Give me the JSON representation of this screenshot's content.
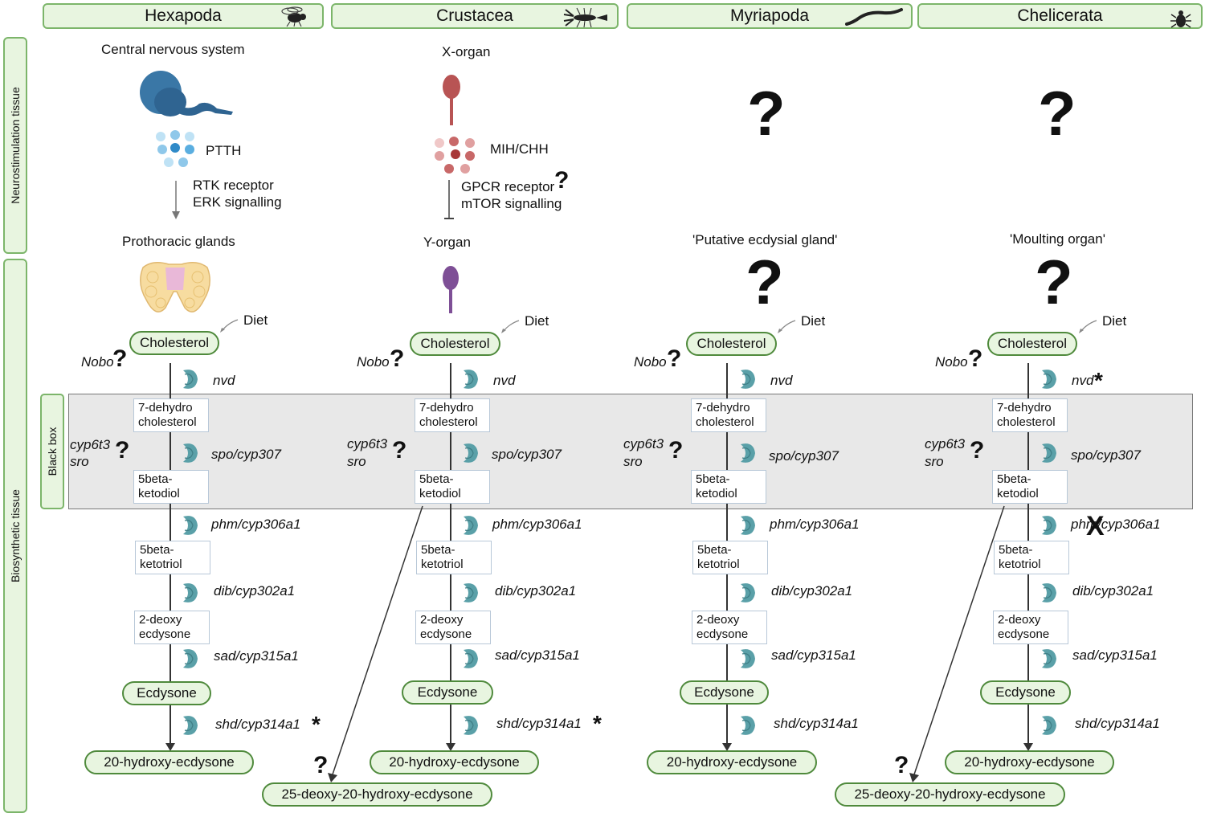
{
  "headers": {
    "hexapoda": "Hexapoda",
    "crustacea": "Crustacea",
    "myriapoda": "Myriapoda",
    "chelicerata": "Chelicerata"
  },
  "side_labels": {
    "neuro": "Neurostimulation tissue",
    "bio": "Biosynthetic tissue",
    "blackbox": "Black box"
  },
  "hexapoda": {
    "neuro_tissue": "Central nervous system",
    "hormone": "PTTH",
    "receptor_line1": "RTK receptor",
    "receptor_line2": "ERK signalling",
    "gland": "Prothoracic glands"
  },
  "crustacea": {
    "neuro_tissue": "X-organ",
    "hormone": "MIH/CHH",
    "receptor_line1": "GPCR receptor",
    "receptor_line2": "mTOR signalling",
    "gland": "Y-organ"
  },
  "myriapoda": {
    "gland": "'Putative ecdysial gland'"
  },
  "chelicerata": {
    "gland": "'Moulting organ'"
  },
  "pathway": {
    "diet": "Diet",
    "cholesterol": "Cholesterol",
    "nobo": "Nobo",
    "nvd": "nvd",
    "dehydro": "7-dehydro cholesterol",
    "cyp6t3": "cyp6t3",
    "sro": "sro",
    "spo": "spo/cyp307",
    "ketodiol": "5beta- ketodiol",
    "phm": "phm/cyp306a1",
    "ketotriol": "5beta- ketotriol",
    "dib": "dib/cyp302a1",
    "deoxy": "2-deoxy ecdysone",
    "sad": "sad/cyp315a1",
    "ecdysone": "Ecdysone",
    "shd": "shd/cyp314a1",
    "hydroxy": "20-hydroxy-ecdysone",
    "deoxy25": "25-deoxy-20-hydroxy-ecdysone"
  },
  "symbols": {
    "question": "?",
    "star": "*",
    "cross": "X"
  },
  "colors": {
    "header_fill": "#e8f5e0",
    "header_border": "#7cb56a",
    "enzyme": "#5aa0a8",
    "blackbox_fill": "#e8e8e8"
  }
}
